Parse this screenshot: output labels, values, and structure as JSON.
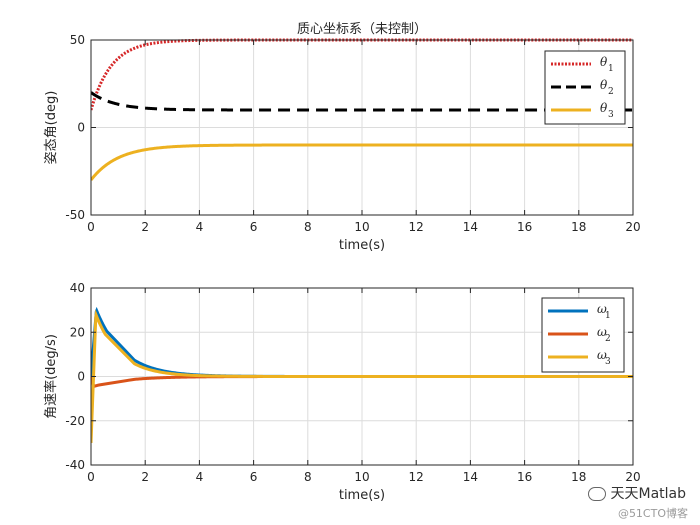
{
  "chart_data": [
    {
      "type": "line",
      "title": "质心坐标系（未控制）",
      "xlabel": "time(s)",
      "ylabel": "姿态角(deg)",
      "xlim": [
        0,
        20
      ],
      "ylim": [
        -50,
        50
      ],
      "xticks": [
        0,
        2,
        4,
        6,
        8,
        10,
        12,
        14,
        16,
        18,
        20
      ],
      "yticks": [
        -50,
        0,
        50
      ],
      "grid": true,
      "legend_position": "top-right",
      "series": [
        {
          "name": "θ",
          "sub": "1",
          "color": "#d62728",
          "dash": "dotted",
          "start": 10,
          "final": 50,
          "tau": 0.75
        },
        {
          "name": "θ",
          "sub": "2",
          "color": "#000000",
          "dash": "dashed",
          "start": 20,
          "final": 10,
          "tau": 0.9
        },
        {
          "name": "θ",
          "sub": "3",
          "color": "#edb120",
          "dash": "solid",
          "start": -30,
          "final": -10,
          "tau": 1.0
        }
      ]
    },
    {
      "type": "line",
      "title": "",
      "xlabel": "time(s)",
      "ylabel": "角速率(deg/s)",
      "xlim": [
        0,
        20
      ],
      "ylim": [
        -40,
        40
      ],
      "xticks": [
        0,
        2,
        4,
        6,
        8,
        10,
        12,
        14,
        16,
        18,
        20
      ],
      "yticks": [
        -40,
        -20,
        0,
        20,
        40
      ],
      "grid": true,
      "legend_position": "top-right",
      "series": [
        {
          "name": "ω",
          "sub": "1",
          "color": "#0072bd",
          "start": 0,
          "peak": 30,
          "peak_t": 0.2,
          "tau": 1.0
        },
        {
          "name": "ω",
          "sub": "2",
          "color": "#d95319",
          "start": 0,
          "peak": -4.5,
          "peak_t": 0.1,
          "tau": 1.2
        },
        {
          "name": "ω",
          "sub": "3",
          "color": "#edb120",
          "start": -30,
          "peak": 28,
          "peak_t": 0.18,
          "tau": 0.9
        }
      ]
    }
  ],
  "watermark": {
    "main": "天天Matlab",
    "sub": "@51CTO博客"
  }
}
